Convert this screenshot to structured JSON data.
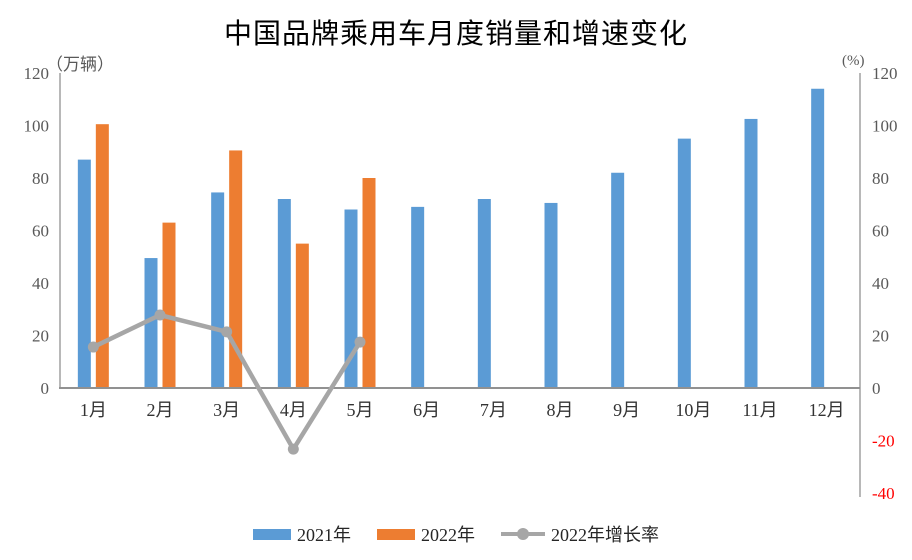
{
  "chart_data": {
    "type": "bar+line",
    "title": "中国品牌乘用车月度销量和增速变化",
    "ylabel_left": "（万辆）",
    "ylabel_right": "(%)",
    "categories": [
      "1月",
      "2月",
      "3月",
      "4月",
      "5月",
      "6月",
      "7月",
      "8月",
      "9月",
      "10月",
      "11月",
      "12月"
    ],
    "series": [
      {
        "name": "2021年",
        "type": "bar",
        "axis": "left",
        "color": "#5B9BD5",
        "values": [
          87,
          49.5,
          74.5,
          72,
          68,
          69,
          72,
          70.5,
          82,
          95,
          102.5,
          114
        ]
      },
      {
        "name": "2022年",
        "type": "bar",
        "axis": "left",
        "color": "#ED7D31",
        "values": [
          100.5,
          63,
          90.5,
          55,
          80
        ]
      },
      {
        "name": "2022年增长率",
        "type": "line",
        "axis": "right",
        "color": "#A6A6A6",
        "values": [
          15.6,
          27.8,
          21.4,
          -23.3,
          17.5
        ]
      }
    ],
    "left_axis": {
      "ticks": [
        0,
        20,
        40,
        60,
        80,
        100,
        120
      ],
      "min": 0,
      "max": 120
    },
    "right_axis": {
      "ticks": [
        -40,
        -20,
        0,
        20,
        40,
        60,
        80,
        100,
        120
      ],
      "min": -40,
      "max": 120
    },
    "grid": false,
    "legend_position": "bottom",
    "colors": {
      "axis_line": "#A6A6A6",
      "tick_label": "#595959",
      "negative_tick_label": "#FF0000",
      "category_label": "#333333",
      "title": "#000000"
    }
  }
}
